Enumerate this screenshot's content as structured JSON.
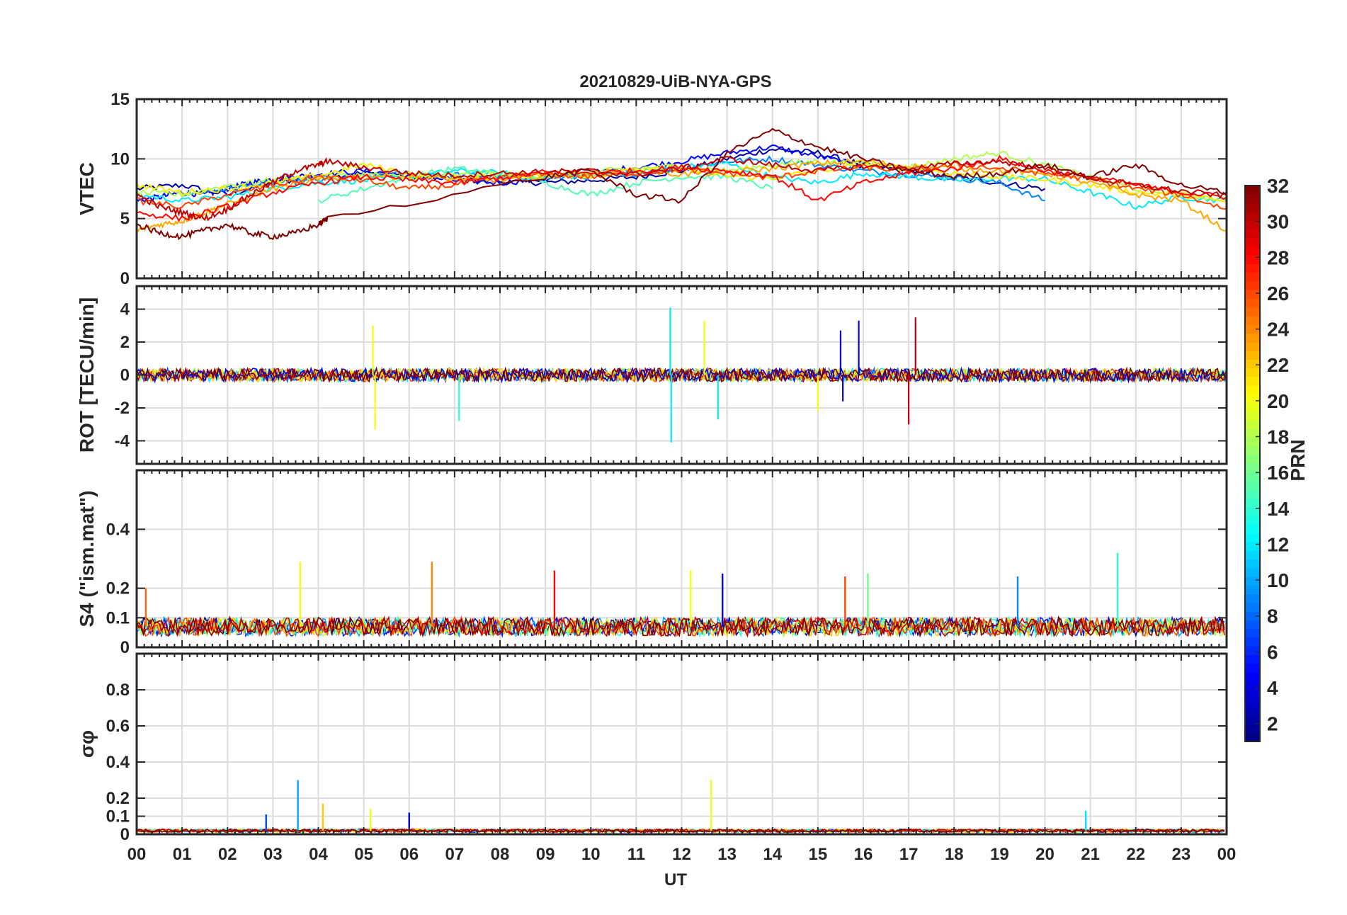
{
  "chart_data": {
    "type": "line",
    "title": "20210829-UiB-NYA-GPS",
    "xlabel": "UT",
    "x_tick_labels": [
      "00",
      "01",
      "02",
      "03",
      "04",
      "05",
      "06",
      "07",
      "08",
      "09",
      "10",
      "11",
      "12",
      "13",
      "14",
      "15",
      "16",
      "17",
      "18",
      "19",
      "20",
      "21",
      "22",
      "23",
      "00"
    ],
    "xlim_hours": [
      0,
      24
    ],
    "grid": true,
    "colorbar": {
      "label": "PRN",
      "range": [
        1,
        32
      ],
      "ticks": [
        "2",
        "4",
        "6",
        "8",
        "10",
        "12",
        "14",
        "16",
        "18",
        "20",
        "22",
        "24",
        "26",
        "28",
        "30",
        "32"
      ],
      "colormap": "jet"
    },
    "panels": [
      {
        "ylabel": "VTEC",
        "ylim": [
          0,
          15
        ],
        "yticks": [
          0,
          5,
          10,
          15
        ],
        "ytick_labels": [
          "0",
          "5",
          "10",
          "15"
        ],
        "series": [
          {
            "prn": 2,
            "x": [
              0,
              1,
              2,
              3,
              4,
              5,
              6,
              7,
              8,
              9,
              10,
              11,
              12,
              13,
              14,
              15,
              16,
              17,
              18,
              19,
              20
            ],
            "y": [
              7.5,
              7.8,
              7.0,
              8.0,
              8.5,
              8.8,
              8.5,
              8.3,
              8.1,
              8.0,
              8.2,
              8.5,
              9.0,
              10.0,
              10.8,
              10.5,
              9.5,
              9.0,
              8.5,
              8.0,
              7.5
            ]
          },
          {
            "prn": 5,
            "x": [
              0,
              0.5,
              1,
              1.5,
              2,
              2.5,
              3,
              3.5,
              4,
              5,
              6,
              7,
              8,
              9,
              10,
              11,
              12,
              13,
              14,
              15,
              16
            ],
            "y": [
              6.5,
              6.8,
              7.2,
              7.0,
              7.5,
              8.0,
              8.3,
              8.5,
              8.7,
              9.0,
              8.6,
              8.2,
              8.0,
              8.3,
              8.8,
              9.3,
              9.8,
              10.5,
              11.0,
              10.2,
              9.4
            ]
          },
          {
            "prn": 9,
            "x": [
              1,
              2,
              3,
              4,
              5,
              6,
              7,
              8,
              9,
              10,
              11,
              12,
              13,
              14,
              15,
              16,
              17,
              18,
              19,
              20
            ],
            "y": [
              7.0,
              7.5,
              8.0,
              8.2,
              8.5,
              8.8,
              8.7,
              8.5,
              8.4,
              8.5,
              8.8,
              9.2,
              9.8,
              10.0,
              9.5,
              9.0,
              8.7,
              8.4,
              8.0,
              6.5
            ]
          },
          {
            "prn": 12,
            "x": [
              0,
              1,
              2,
              3,
              4,
              5,
              6,
              7,
              8,
              9,
              10,
              11,
              12,
              13,
              14,
              15,
              16,
              17,
              18,
              19,
              20,
              21,
              22,
              23,
              24
            ],
            "y": [
              7.0,
              6.5,
              6.8,
              7.5,
              8.0,
              8.2,
              8.5,
              9.0,
              8.8,
              8.5,
              8.6,
              8.9,
              9.3,
              9.6,
              8.5,
              8.0,
              8.8,
              8.5,
              8.2,
              8.4,
              8.3,
              7.2,
              6.0,
              6.8,
              6.5
            ]
          },
          {
            "prn": 15,
            "x": [
              4,
              5,
              6,
              7,
              8,
              9,
              10,
              11,
              12,
              13,
              14
            ],
            "y": [
              6.5,
              7.5,
              8.5,
              9.2,
              8.8,
              8.0,
              7.0,
              8.0,
              8.5,
              8.5,
              7.5
            ]
          },
          {
            "prn": 18,
            "x": [
              0,
              1,
              2,
              3,
              4,
              5,
              6,
              7,
              8,
              9,
              10,
              11,
              12,
              13,
              14,
              15,
              16,
              17,
              18,
              19,
              20,
              21,
              22,
              23,
              24
            ],
            "y": [
              7.2,
              7.0,
              7.8,
              8.2,
              8.5,
              8.7,
              8.4,
              8.6,
              8.8,
              8.5,
              8.9,
              9.2,
              9.4,
              9.0,
              9.5,
              9.8,
              9.6,
              9.3,
              10.0,
              10.5,
              9.5,
              8.5,
              7.5,
              7.0,
              6.6
            ]
          },
          {
            "prn": 21,
            "x": [
              0,
              1,
              2,
              3,
              4,
              5,
              6,
              7,
              8,
              9,
              10,
              11,
              12,
              13,
              14,
              15,
              16,
              17,
              18,
              19,
              20,
              21,
              22,
              23,
              24
            ],
            "y": [
              7.8,
              7.2,
              7.5,
              8.0,
              8.6,
              9.5,
              8.8,
              8.4,
              8.5,
              8.7,
              8.6,
              9.0,
              9.2,
              8.6,
              8.4,
              9.0,
              9.5,
              9.2,
              8.8,
              8.5,
              8.3,
              7.8,
              7.2,
              7.0,
              6.4
            ]
          },
          {
            "prn": 23,
            "x": [
              0,
              0.5,
              1,
              1.5,
              2,
              3,
              4,
              5,
              6,
              7,
              8,
              9,
              10,
              11,
              12,
              13,
              14,
              15,
              16,
              17,
              18,
              19,
              20,
              21,
              22,
              23,
              24
            ],
            "y": [
              4.0,
              4.5,
              4.8,
              5.5,
              6.2,
              7.5,
              8.2,
              8.6,
              8.5,
              8.3,
              8.2,
              8.6,
              8.8,
              9.0,
              8.7,
              8.9,
              9.2,
              9.6,
              9.8,
              9.4,
              9.2,
              9.0,
              8.8,
              8.0,
              7.0,
              6.5,
              4.0
            ]
          },
          {
            "prn": 26,
            "x": [
              0,
              1,
              2,
              3,
              4,
              5,
              6,
              7,
              8,
              9,
              10,
              11,
              12,
              13,
              14,
              15,
              16,
              17,
              18,
              19,
              20,
              21,
              22,
              23,
              24
            ],
            "y": [
              6.5,
              6.0,
              7.0,
              7.8,
              8.5,
              8.2,
              7.5,
              7.8,
              8.4,
              8.7,
              8.5,
              8.8,
              9.1,
              8.8,
              8.4,
              9.0,
              9.3,
              9.0,
              9.5,
              9.2,
              8.8,
              8.3,
              7.5,
              7.0,
              5.8
            ]
          },
          {
            "prn": 28,
            "x": [
              0,
              1,
              2,
              3,
              4,
              5,
              6,
              7,
              8,
              9,
              10,
              11,
              12,
              13,
              14,
              15,
              16,
              17,
              18,
              19,
              20,
              21,
              22,
              23,
              24
            ],
            "y": [
              5.5,
              5.0,
              6.0,
              7.2,
              8.0,
              8.5,
              8.2,
              8.0,
              8.4,
              8.9,
              8.8,
              9.0,
              9.3,
              9.0,
              8.6,
              6.5,
              8.0,
              8.8,
              9.2,
              10.0,
              9.0,
              8.5,
              7.8,
              7.2,
              6.8
            ]
          },
          {
            "prn": 30,
            "x": [
              0,
              0.5,
              1,
              1.5,
              2,
              2.5,
              3,
              3.5,
              4,
              4.2,
              5,
              6,
              7,
              8,
              9,
              10,
              11,
              12,
              13,
              14,
              15,
              16,
              17,
              18,
              19,
              20,
              21,
              22,
              23,
              24
            ],
            "y": [
              7.0,
              6.0,
              5.5,
              5.0,
              5.8,
              7.0,
              8.0,
              9.0,
              9.5,
              9.8,
              9.3,
              8.8,
              8.6,
              8.8,
              8.9,
              9.0,
              8.7,
              9.2,
              10.0,
              9.5,
              9.0,
              9.4,
              9.2,
              9.6,
              9.8,
              9.2,
              8.4,
              7.8,
              7.3,
              6.9
            ]
          },
          {
            "prn": 32,
            "x": [
              0,
              0.5,
              1,
              1.5,
              2,
              2.5,
              3,
              3.5,
              4,
              4.2,
              9,
              10,
              11,
              12,
              13,
              14,
              15,
              16,
              17,
              18,
              19,
              20,
              21,
              22,
              23,
              24
            ],
            "y": [
              4.5,
              3.8,
              3.5,
              4.0,
              4.5,
              3.8,
              3.5,
              3.8,
              4.5,
              5.0,
              8.5,
              9.0,
              7.0,
              6.5,
              10.5,
              12.4,
              11.0,
              10.0,
              9.0,
              8.5,
              8.8,
              9.5,
              8.5,
              9.5,
              7.8,
              7.2
            ]
          }
        ]
      },
      {
        "ylabel": "ROT [TECU/min]",
        "ylim": [
          -5.4,
          5.4
        ],
        "yticks": [
          -4,
          -2,
          0,
          2,
          4
        ],
        "ytick_labels": [
          "-4",
          "-2",
          "0",
          "2",
          "4"
        ],
        "noise_amplitude": 0.4,
        "spikes": [
          {
            "prn": 20,
            "x": 5.2,
            "y": 3.0
          },
          {
            "prn": 20,
            "x": 5.25,
            "y": -3.3
          },
          {
            "prn": 14,
            "x": 7.1,
            "y": -2.8
          },
          {
            "prn": 12,
            "x": 11.75,
            "y": 4.1
          },
          {
            "prn": 12,
            "x": 11.77,
            "y": -4.1
          },
          {
            "prn": 20,
            "x": 12.5,
            "y": 3.3
          },
          {
            "prn": 12,
            "x": 12.8,
            "y": -2.7
          },
          {
            "prn": 20,
            "x": 15.0,
            "y": -2.2
          },
          {
            "prn": 4,
            "x": 15.5,
            "y": 2.7
          },
          {
            "prn": 4,
            "x": 15.9,
            "y": 3.3
          },
          {
            "prn": 4,
            "x": 15.55,
            "y": -1.6
          },
          {
            "prn": 30,
            "x": 17.15,
            "y": 3.5
          },
          {
            "prn": 30,
            "x": 17.0,
            "y": -3.0
          }
        ]
      },
      {
        "ylabel": "S4 (\"ism.mat\")",
        "ylim": [
          0,
          0.6
        ],
        "yticks": [
          0,
          0.1,
          0.2,
          0.4
        ],
        "ytick_labels": [
          "0",
          "0.1",
          "0.2",
          "0.4"
        ],
        "baseline": 0.07,
        "peaks": [
          {
            "prn": 25,
            "x": 0.2,
            "y": 0.2
          },
          {
            "prn": 20,
            "x": 3.6,
            "y": 0.29
          },
          {
            "prn": 24,
            "x": 6.5,
            "y": 0.29
          },
          {
            "prn": 28,
            "x": 9.2,
            "y": 0.26
          },
          {
            "prn": 20,
            "x": 12.2,
            "y": 0.26
          },
          {
            "prn": 5,
            "x": 12.9,
            "y": 0.25
          },
          {
            "prn": 26,
            "x": 15.6,
            "y": 0.24
          },
          {
            "prn": 16,
            "x": 16.1,
            "y": 0.25
          },
          {
            "prn": 9,
            "x": 19.4,
            "y": 0.24
          },
          {
            "prn": 14,
            "x": 21.6,
            "y": 0.32
          }
        ]
      },
      {
        "ylabel": "σφ",
        "ylim": [
          0,
          1.0
        ],
        "yticks": [
          0,
          0.1,
          0.2,
          0.4,
          0.6,
          0.8
        ],
        "ytick_labels": [
          "0",
          "0.1",
          "0.2",
          "0.4",
          "0.6",
          "0.8"
        ],
        "baseline": 0.02,
        "peaks": [
          {
            "prn": 7,
            "x": 2.85,
            "y": 0.11
          },
          {
            "prn": 10,
            "x": 3.55,
            "y": 0.3
          },
          {
            "prn": 22,
            "x": 4.1,
            "y": 0.17
          },
          {
            "prn": 20,
            "x": 5.15,
            "y": 0.14
          },
          {
            "prn": 4,
            "x": 6.0,
            "y": 0.12
          },
          {
            "prn": 20,
            "x": 12.65,
            "y": 0.3
          },
          {
            "prn": 12,
            "x": 20.9,
            "y": 0.13
          }
        ]
      }
    ]
  }
}
